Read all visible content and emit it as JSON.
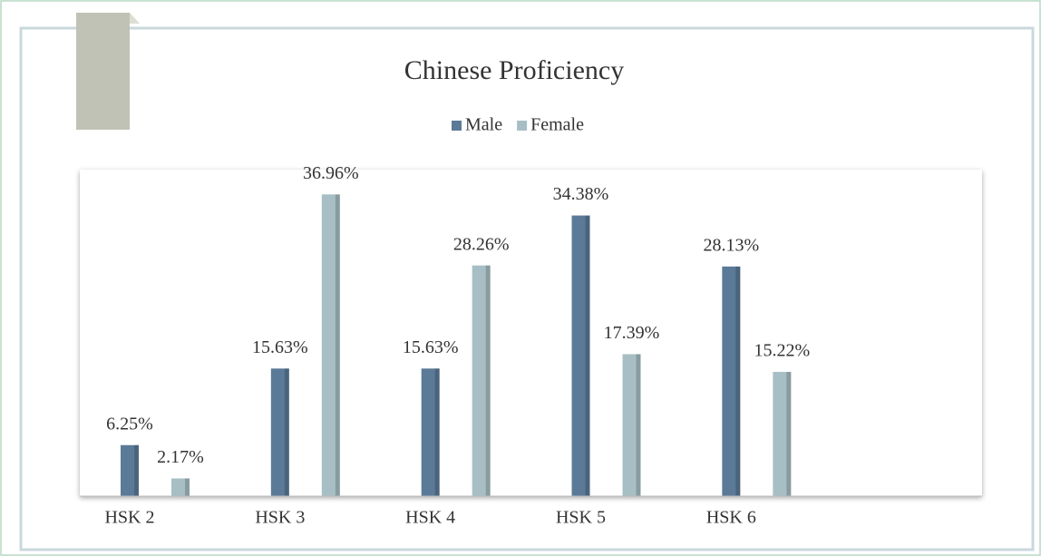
{
  "chart_data": {
    "type": "bar",
    "title": "Chinese Proficiency",
    "categories": [
      "HSK 2",
      "HSK 3",
      "HSK 4",
      "HSK 5",
      "HSK 6",
      null
    ],
    "series": [
      {
        "name": "Male",
        "color": "#5b7a98",
        "values": [
          6.25,
          15.63,
          15.63,
          34.38,
          28.13,
          null
        ],
        "value_labels": [
          "6.25%",
          "15.63%",
          "15.63%",
          "34.38%",
          "28.13%",
          null
        ]
      },
      {
        "name": "Female",
        "color": "#a7bfc4",
        "values": [
          2.17,
          36.96,
          28.26,
          17.39,
          15.22,
          null
        ],
        "value_labels": [
          "2.17%",
          "36.96%",
          "28.26%",
          "17.39%",
          "15.22%",
          null
        ]
      }
    ],
    "ylim": [
      0,
      40
    ],
    "legend": "top"
  }
}
